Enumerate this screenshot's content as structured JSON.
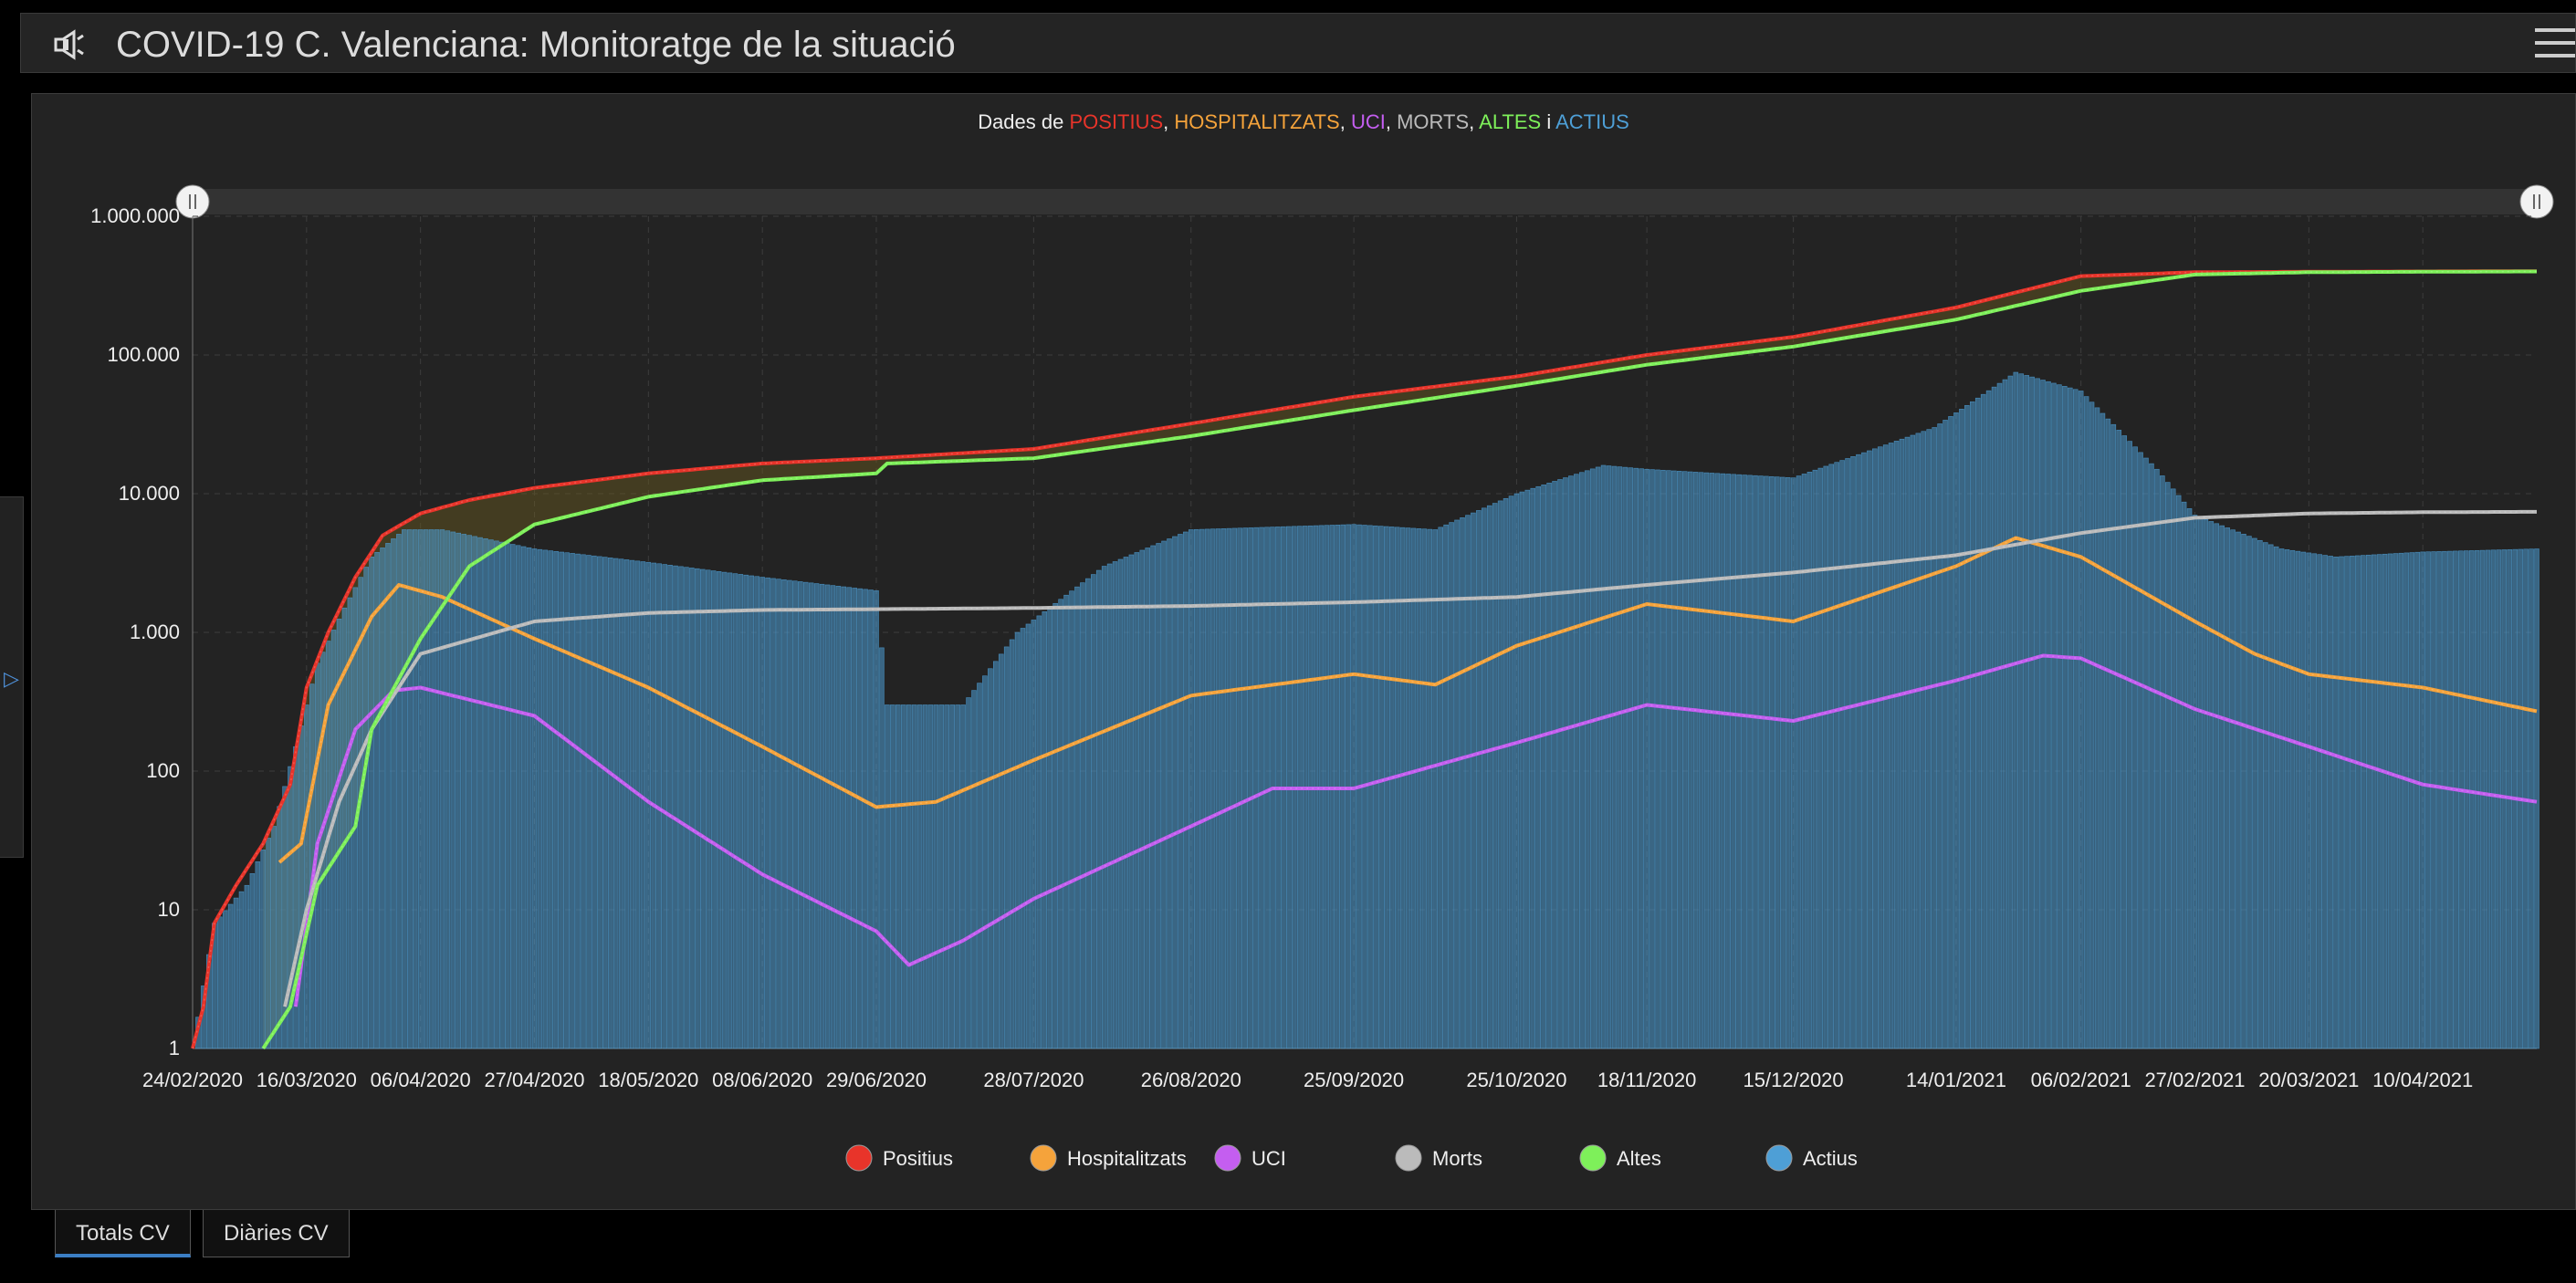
{
  "header": {
    "title": "COVID-19 C. Valenciana: Monitoratge de la situació",
    "icon": "megaphone-icon",
    "menu_icon": "hamburger-icon"
  },
  "tabs": [
    {
      "label": "Totals CV",
      "active": true
    },
    {
      "label": "Diàries CV",
      "active": false
    }
  ],
  "chart_data": {
    "type": "line",
    "title_parts": [
      {
        "text": "Dades de ",
        "color": "#eeeeee"
      },
      {
        "text": "POSITIUS",
        "color": "#e8342a"
      },
      {
        "text": ", ",
        "color": "#eeeeee"
      },
      {
        "text": "HOSPITALITZATS",
        "color": "#f5a33b"
      },
      {
        "text": ", ",
        "color": "#eeeeee"
      },
      {
        "text": "UCI",
        "color": "#c45ef0"
      },
      {
        "text": ", ",
        "color": "#eeeeee"
      },
      {
        "text": "MORTS",
        "color": "#bbbbbb"
      },
      {
        "text": ", ",
        "color": "#eeeeee"
      },
      {
        "text": "ALTES",
        "color": "#7ef05a"
      },
      {
        "text": " i ",
        "color": "#eeeeee"
      },
      {
        "text": "ACTIUS",
        "color": "#4e9fd6"
      }
    ],
    "y_scale": "log",
    "ylim": [
      1,
      1000000
    ],
    "y_ticks": [
      1,
      10,
      100,
      1000,
      10000,
      100000,
      1000000
    ],
    "y_tick_labels": [
      "1",
      "10",
      "100",
      "1.000",
      "10.000",
      "100.000",
      "1.000.000"
    ],
    "xlim": [
      "2020-02-24",
      "2021-05-01"
    ],
    "x_ticks": [
      "2020-02-24",
      "2020-03-16",
      "2020-04-06",
      "2020-04-27",
      "2020-05-18",
      "2020-06-08",
      "2020-06-29",
      "2020-07-28",
      "2020-08-26",
      "2020-09-25",
      "2020-10-25",
      "2020-11-18",
      "2020-12-15",
      "2021-01-14",
      "2021-02-06",
      "2021-02-27",
      "2021-03-20",
      "2021-04-10"
    ],
    "x_tick_labels": [
      "24/02/2020",
      "16/03/2020",
      "06/04/2020",
      "27/04/2020",
      "18/05/2020",
      "08/06/2020",
      "29/06/2020",
      "28/07/2020",
      "26/08/2020",
      "25/09/2020",
      "25/10/2020",
      "18/11/2020",
      "15/12/2020",
      "14/01/2021",
      "06/02/2021",
      "27/02/2021",
      "20/03/2021",
      "10/04/2021"
    ],
    "grid": true,
    "legend_position": "bottom",
    "series": [
      {
        "name": "Positius",
        "color": "#e8342a",
        "kind": "line",
        "points": [
          [
            "2020-02-24",
            1
          ],
          [
            "2020-02-26",
            2
          ],
          [
            "2020-02-28",
            8
          ],
          [
            "2020-03-03",
            15
          ],
          [
            "2020-03-08",
            30
          ],
          [
            "2020-03-13",
            80
          ],
          [
            "2020-03-16",
            400
          ],
          [
            "2020-03-20",
            1000
          ],
          [
            "2020-03-25",
            2500
          ],
          [
            "2020-03-30",
            5000
          ],
          [
            "2020-04-06",
            7200
          ],
          [
            "2020-04-15",
            9000
          ],
          [
            "2020-04-27",
            11000
          ],
          [
            "2020-05-18",
            14000
          ],
          [
            "2020-06-08",
            16500
          ],
          [
            "2020-06-29",
            18000
          ],
          [
            "2020-07-28",
            21000
          ],
          [
            "2020-08-26",
            32000
          ],
          [
            "2020-09-25",
            50000
          ],
          [
            "2020-10-25",
            70000
          ],
          [
            "2020-11-18",
            100000
          ],
          [
            "2020-12-15",
            135000
          ],
          [
            "2021-01-14",
            220000
          ],
          [
            "2021-02-06",
            370000
          ],
          [
            "2021-02-27",
            395000
          ],
          [
            "2021-03-20",
            398000
          ],
          [
            "2021-04-10",
            400000
          ],
          [
            "2021-05-01",
            402000
          ]
        ]
      },
      {
        "name": "Hospitalitzats",
        "color": "#f5a33b",
        "kind": "line",
        "points": [
          [
            "2020-03-11",
            22
          ],
          [
            "2020-03-15",
            30
          ],
          [
            "2020-03-20",
            300
          ],
          [
            "2020-03-28",
            1300
          ],
          [
            "2020-04-02",
            2200
          ],
          [
            "2020-04-10",
            1800
          ],
          [
            "2020-04-27",
            900
          ],
          [
            "2020-05-18",
            400
          ],
          [
            "2020-06-08",
            150
          ],
          [
            "2020-06-29",
            55
          ],
          [
            "2020-07-10",
            60
          ],
          [
            "2020-07-28",
            120
          ],
          [
            "2020-08-26",
            350
          ],
          [
            "2020-09-25",
            500
          ],
          [
            "2020-10-10",
            420
          ],
          [
            "2020-10-25",
            800
          ],
          [
            "2020-11-18",
            1600
          ],
          [
            "2020-12-15",
            1200
          ],
          [
            "2021-01-14",
            3000
          ],
          [
            "2021-01-25",
            4800
          ],
          [
            "2021-02-06",
            3500
          ],
          [
            "2021-02-27",
            1200
          ],
          [
            "2021-03-10",
            700
          ],
          [
            "2021-03-20",
            500
          ],
          [
            "2021-04-10",
            400
          ],
          [
            "2021-05-01",
            270
          ]
        ]
      },
      {
        "name": "UCI",
        "color": "#c45ef0",
        "kind": "line",
        "points": [
          [
            "2020-03-14",
            2
          ],
          [
            "2020-03-18",
            30
          ],
          [
            "2020-03-25",
            200
          ],
          [
            "2020-04-01",
            380
          ],
          [
            "2020-04-06",
            400
          ],
          [
            "2020-04-27",
            250
          ],
          [
            "2020-05-18",
            60
          ],
          [
            "2020-06-08",
            18
          ],
          [
            "2020-06-29",
            7
          ],
          [
            "2020-07-05",
            4
          ],
          [
            "2020-07-15",
            6
          ],
          [
            "2020-07-28",
            12
          ],
          [
            "2020-08-26",
            40
          ],
          [
            "2020-09-10",
            75
          ],
          [
            "2020-09-25",
            75
          ],
          [
            "2020-10-25",
            160
          ],
          [
            "2020-11-18",
            300
          ],
          [
            "2020-12-15",
            230
          ],
          [
            "2021-01-14",
            450
          ],
          [
            "2021-01-30",
            680
          ],
          [
            "2021-02-06",
            650
          ],
          [
            "2021-02-27",
            280
          ],
          [
            "2021-03-20",
            150
          ],
          [
            "2021-04-10",
            80
          ],
          [
            "2021-05-01",
            60
          ]
        ]
      },
      {
        "name": "Morts",
        "color": "#bbbbbb",
        "kind": "line",
        "points": [
          [
            "2020-03-12",
            2
          ],
          [
            "2020-03-16",
            10
          ],
          [
            "2020-03-22",
            60
          ],
          [
            "2020-03-28",
            200
          ],
          [
            "2020-04-06",
            700
          ],
          [
            "2020-04-27",
            1200
          ],
          [
            "2020-05-18",
            1380
          ],
          [
            "2020-06-08",
            1450
          ],
          [
            "2020-06-29",
            1470
          ],
          [
            "2020-07-28",
            1500
          ],
          [
            "2020-08-26",
            1550
          ],
          [
            "2020-09-25",
            1650
          ],
          [
            "2020-10-25",
            1800
          ],
          [
            "2020-11-18",
            2200
          ],
          [
            "2020-12-15",
            2700
          ],
          [
            "2021-01-14",
            3600
          ],
          [
            "2021-02-06",
            5200
          ],
          [
            "2021-02-27",
            6700
          ],
          [
            "2021-03-20",
            7200
          ],
          [
            "2021-04-10",
            7350
          ],
          [
            "2021-05-01",
            7400
          ]
        ]
      },
      {
        "name": "Altes",
        "color": "#7ef05a",
        "kind": "line",
        "points": [
          [
            "2020-03-08",
            1
          ],
          [
            "2020-03-13",
            2
          ],
          [
            "2020-03-18",
            15
          ],
          [
            "2020-03-25",
            40
          ],
          [
            "2020-03-28",
            200
          ],
          [
            "2020-04-06",
            900
          ],
          [
            "2020-04-15",
            3000
          ],
          [
            "2020-04-27",
            6000
          ],
          [
            "2020-05-18",
            9500
          ],
          [
            "2020-06-08",
            12500
          ],
          [
            "2020-06-29",
            14000
          ],
          [
            "2020-07-01",
            16500
          ],
          [
            "2020-07-28",
            18000
          ],
          [
            "2020-08-26",
            26000
          ],
          [
            "2020-09-25",
            40000
          ],
          [
            "2020-10-25",
            60000
          ],
          [
            "2020-11-18",
            85000
          ],
          [
            "2020-12-15",
            115000
          ],
          [
            "2021-01-14",
            180000
          ],
          [
            "2021-02-06",
            290000
          ],
          [
            "2021-02-27",
            380000
          ],
          [
            "2021-03-20",
            395000
          ],
          [
            "2021-04-10",
            398000
          ],
          [
            "2021-05-01",
            400000
          ]
        ]
      },
      {
        "name": "Actius",
        "color": "#4e9fd6",
        "kind": "bar",
        "points": [
          [
            "2020-02-24",
            1
          ],
          [
            "2020-02-28",
            8
          ],
          [
            "2020-03-05",
            15
          ],
          [
            "2020-03-10",
            40
          ],
          [
            "2020-03-14",
            150
          ],
          [
            "2020-03-18",
            600
          ],
          [
            "2020-03-23",
            1500
          ],
          [
            "2020-03-28",
            3500
          ],
          [
            "2020-04-03",
            5500
          ],
          [
            "2020-04-10",
            5500
          ],
          [
            "2020-04-27",
            4000
          ],
          [
            "2020-05-18",
            3200
          ],
          [
            "2020-06-08",
            2500
          ],
          [
            "2020-06-29",
            2000
          ],
          [
            "2020-07-01",
            300
          ],
          [
            "2020-07-15",
            300
          ],
          [
            "2020-07-25",
            1000
          ],
          [
            "2020-08-10",
            3000
          ],
          [
            "2020-08-26",
            5500
          ],
          [
            "2020-09-25",
            6000
          ],
          [
            "2020-10-10",
            5500
          ],
          [
            "2020-10-25",
            10000
          ],
          [
            "2020-11-10",
            16000
          ],
          [
            "2020-11-18",
            15000
          ],
          [
            "2020-12-15",
            13000
          ],
          [
            "2021-01-10",
            30000
          ],
          [
            "2021-01-25",
            75000
          ],
          [
            "2021-02-06",
            55000
          ],
          [
            "2021-02-20",
            15000
          ],
          [
            "2021-02-27",
            7000
          ],
          [
            "2021-03-15",
            4000
          ],
          [
            "2021-03-25",
            3500
          ],
          [
            "2021-04-10",
            3800
          ],
          [
            "2021-05-01",
            4000
          ]
        ]
      }
    ]
  }
}
